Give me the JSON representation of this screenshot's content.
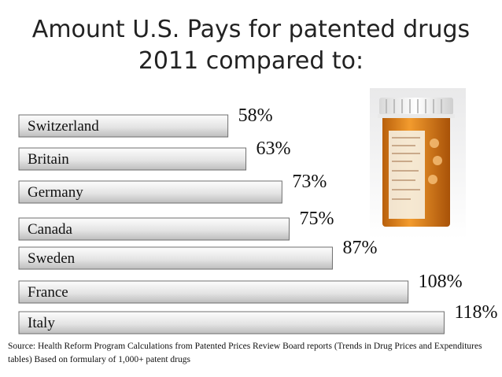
{
  "title_line1": "Amount U.S. Pays for patented drugs",
  "title_line2": "2011 compared to:",
  "source_note": "Source: Health Reform Program Calculations from Patented Prices Review Board reports (Trends in Drug Prices and Expenditures tables) Based on formulary of 1,000+ patent drugs",
  "image_icon": "prescription-pill-bottle",
  "colors": {
    "bar_fill_top": "#fdfdfd",
    "bar_fill_bottom": "#bdbdbd",
    "bar_border": "#6f6f6f",
    "bottle_orange": "#e07f1a",
    "cap_white": "#f4f4f4"
  },
  "chart_data": {
    "type": "bar",
    "orientation": "horizontal",
    "categories": [
      "Switzerland",
      "Britain",
      "Germany",
      "Canada",
      "Sweden",
      "France",
      "Italy"
    ],
    "values": [
      58,
      63,
      73,
      75,
      87,
      108,
      118
    ],
    "value_labels": [
      "58%",
      "63%",
      "73%",
      "75%",
      "87%",
      "108%",
      "118%"
    ],
    "unit": "%",
    "title": "Amount U.S. Pays for patented drugs 2011 compared to:",
    "xlabel": "",
    "ylabel": "",
    "grid": false,
    "legend": "none"
  }
}
